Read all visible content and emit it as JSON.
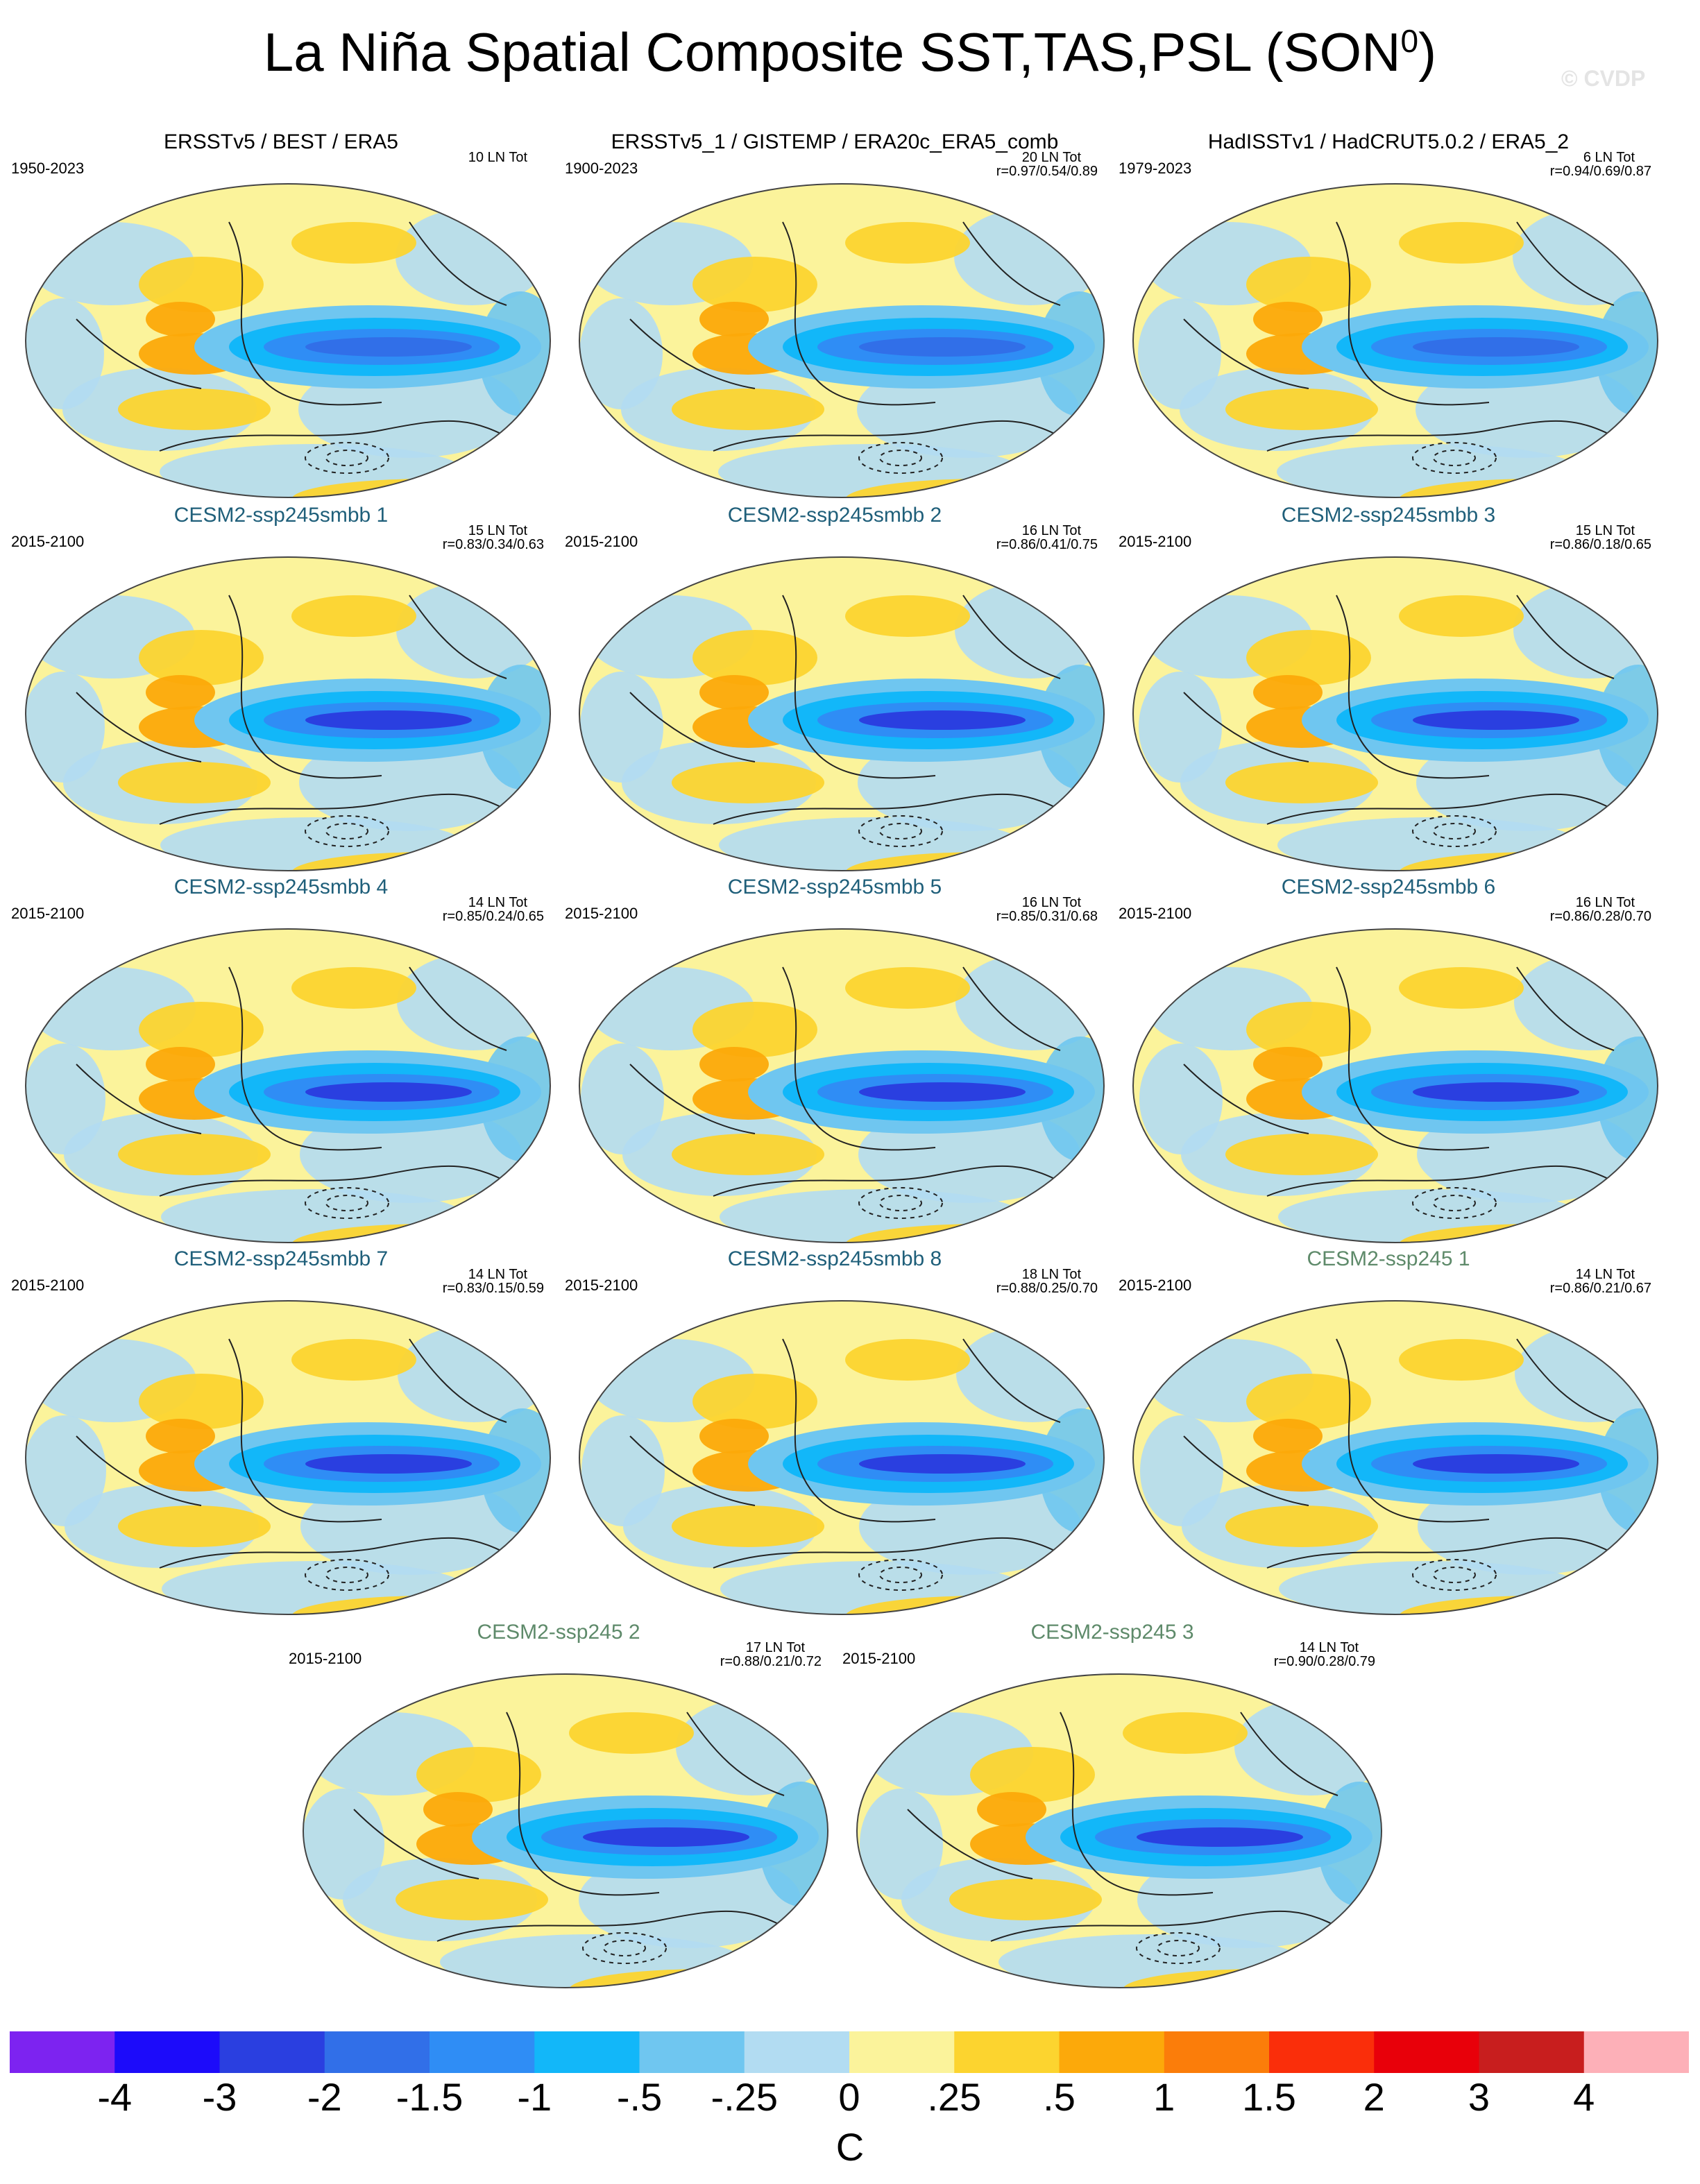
{
  "figure": {
    "title": "La Niña Spatial Composite SST,TAS,PSL (SON",
    "title_superscript": "0",
    "title_suffix": ")",
    "watermark": "© CVDP"
  },
  "chart_data": {
    "type": "heatmap",
    "projection": "Robinson global maps, filled contours of temperature anomaly with PSL line contours",
    "panels": [
      {
        "title": "ERSSTv5 / BEST / ERA5",
        "years": "1950-2023",
        "count": "10 LN Tot",
        "corr": "",
        "kind": "obs"
      },
      {
        "title": "ERSSTv5_1 / GISTEMP / ERA20c_ERA5_comb",
        "years": "1900-2023",
        "count": "20 LN Tot",
        "corr": "r=0.97/0.54/0.89",
        "kind": "obs"
      },
      {
        "title": "HadISSTv1 / HadCRUT5.0.2 / ERA5_2",
        "years": "1979-2023",
        "count": "6 LN Tot",
        "corr": "r=0.94/0.69/0.87",
        "kind": "obs"
      },
      {
        "title": "CESM2-ssp245smbb 1",
        "years": "2015-2100",
        "count": "15 LN Tot",
        "corr": "r=0.83/0.34/0.63",
        "kind": "smbb"
      },
      {
        "title": "CESM2-ssp245smbb 2",
        "years": "2015-2100",
        "count": "16 LN Tot",
        "corr": "r=0.86/0.41/0.75",
        "kind": "smbb"
      },
      {
        "title": "CESM2-ssp245smbb 3",
        "years": "2015-2100",
        "count": "15 LN Tot",
        "corr": "r=0.86/0.18/0.65",
        "kind": "smbb"
      },
      {
        "title": "CESM2-ssp245smbb 4",
        "years": "2015-2100",
        "count": "14 LN Tot",
        "corr": "r=0.85/0.24/0.65",
        "kind": "smbb"
      },
      {
        "title": "CESM2-ssp245smbb 5",
        "years": "2015-2100",
        "count": "16 LN Tot",
        "corr": "r=0.85/0.31/0.68",
        "kind": "smbb"
      },
      {
        "title": "CESM2-ssp245smbb 6",
        "years": "2015-2100",
        "count": "16 LN Tot",
        "corr": "r=0.86/0.28/0.70",
        "kind": "smbb"
      },
      {
        "title": "CESM2-ssp245smbb 7",
        "years": "2015-2100",
        "count": "14 LN Tot",
        "corr": "r=0.83/0.15/0.59",
        "kind": "smbb"
      },
      {
        "title": "CESM2-ssp245smbb 8",
        "years": "2015-2100",
        "count": "18 LN Tot",
        "corr": "r=0.88/0.25/0.70",
        "kind": "smbb"
      },
      {
        "title": "CESM2-ssp245 1",
        "years": "2015-2100",
        "count": "14 LN Tot",
        "corr": "r=0.86/0.21/0.67",
        "kind": "cmip"
      },
      {
        "title": "CESM2-ssp245 2",
        "years": "2015-2100",
        "count": "17 LN Tot",
        "corr": "r=0.88/0.21/0.72",
        "kind": "cmip"
      },
      {
        "title": "CESM2-ssp245 3",
        "years": "2015-2100",
        "count": "14 LN Tot",
        "corr": "r=0.90/0.28/0.79",
        "kind": "cmip"
      }
    ],
    "colorbar": {
      "units": "C",
      "levels": [
        "-4",
        "-3",
        "-2",
        "-1.5",
        "-1",
        "-.5",
        "-.25",
        "0",
        ".25",
        ".5",
        "1",
        "1.5",
        "2",
        "3",
        "4"
      ],
      "colors": [
        "#7d23f0",
        "#1c0bfa",
        "#2a3fe0",
        "#316fe8",
        "#2f8df5",
        "#12b7f9",
        "#6fc6f0",
        "#b2dcf2",
        "#fbf39b",
        "#fcd42f",
        "#fca90a",
        "#fb7d0a",
        "#fa2e0a",
        "#e8000a",
        "#c81e1e",
        "#fdb0b8"
      ]
    }
  }
}
